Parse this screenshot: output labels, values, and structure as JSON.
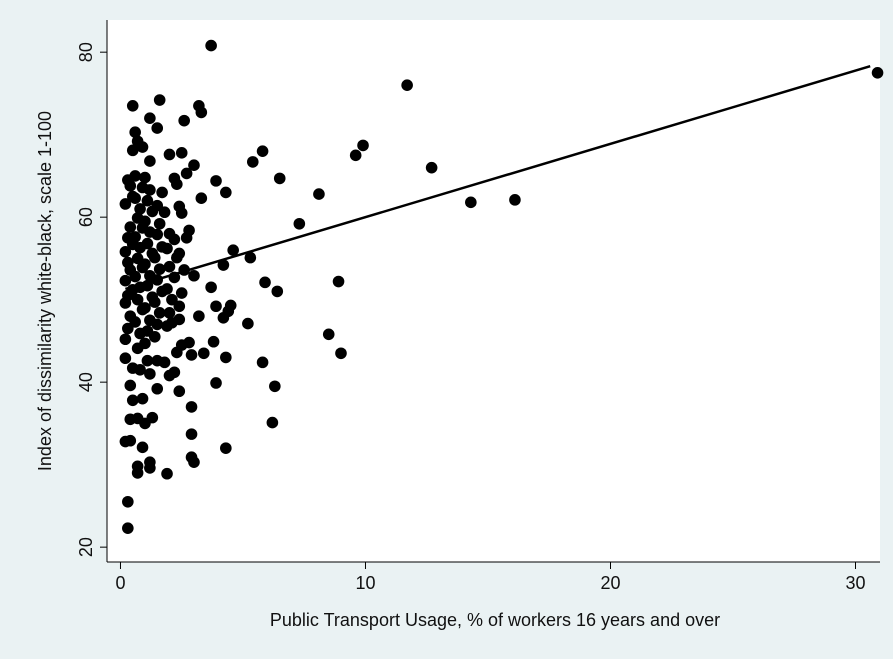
{
  "chart_data": {
    "type": "scatter",
    "xlabel": "Public Transport Usage, % of workers 16 years and over",
    "ylabel": "Index of dissimilarity white-black, scale 1-100",
    "color": "#000000",
    "x": [
      3.7,
      0.5,
      1.6,
      3.2,
      3.3,
      2.6,
      1.2,
      1.5,
      0.6,
      0.7,
      11.7,
      30.9,
      9.9,
      9.6,
      5.8,
      5.4,
      6.5,
      12.7,
      8.1,
      14.3,
      16.1,
      7.3,
      4.3,
      3.9,
      3.3,
      3.0,
      2.5,
      2.0,
      2.2,
      2.7,
      1.2,
      0.5,
      0.9,
      5.3,
      4.6,
      4.2,
      5.9,
      6.4,
      8.9,
      3.7,
      3.0,
      4.5,
      4.4,
      3.9,
      5.2,
      4.2,
      3.2,
      8.5,
      9.0,
      5.8,
      4.3,
      3.8,
      3.4,
      2.8,
      2.9,
      2.5,
      6.3,
      3.9,
      2.4,
      2.9,
      6.2,
      2.9,
      4.3,
      2.9,
      3.0,
      1.9,
      0.7,
      1.2,
      0.7,
      1.2,
      0.3,
      0.3,
      0.4,
      0.9,
      0.2,
      1.0,
      1.3,
      0.4,
      0.7,
      0.5,
      0.9,
      2.0,
      2.2,
      1.5,
      1.8,
      1.5,
      1.1,
      0.4,
      0.2,
      0.8,
      0.2,
      0.3,
      0.4,
      0.2,
      0.3,
      0.5,
      0.2,
      0.4,
      0.3,
      0.2,
      0.5,
      0.3,
      0.4,
      0.2,
      0.5,
      0.4,
      0.3,
      0.6,
      0.7,
      0.8,
      0.6,
      0.9,
      0.7,
      0.8,
      0.6,
      0.9,
      0.7,
      0.8,
      0.6,
      0.9,
      0.7,
      0.8,
      0.6,
      0.9,
      1.0,
      1.1,
      1.2,
      1.0,
      1.3,
      1.1,
      1.2,
      1.0,
      1.3,
      1.1,
      1.2,
      1.0,
      1.3,
      1.1,
      1.2,
      1.0,
      1.4,
      1.5,
      1.6,
      1.4,
      1.7,
      1.5,
      1.6,
      1.4,
      1.7,
      1.5,
      1.6,
      1.8,
      1.5,
      1.7,
      1.9,
      2.0,
      2.1,
      1.9,
      2.2,
      2.0,
      2.3,
      1.9,
      2.2,
      2.0,
      2.4,
      2.5,
      2.6,
      2.4,
      2.7,
      2.8,
      2.5,
      2.4,
      2.3,
      2.1,
      2.4,
      2.3,
      1.2,
      0.5
    ],
    "values": [
      80.8,
      73.5,
      74.2,
      73.5,
      72.7,
      71.7,
      72.0,
      70.8,
      70.3,
      69.2,
      76.0,
      77.5,
      68.7,
      67.5,
      68.0,
      66.7,
      64.7,
      66.0,
      62.8,
      61.8,
      62.1,
      59.2,
      63.0,
      64.4,
      62.3,
      66.3,
      67.8,
      67.6,
      64.7,
      65.3,
      66.8,
      68.1,
      68.5,
      55.1,
      56.0,
      54.2,
      52.1,
      51.0,
      52.2,
      51.5,
      52.9,
      49.3,
      48.6,
      49.2,
      47.1,
      47.8,
      48.0,
      45.8,
      43.5,
      42.4,
      43.0,
      44.9,
      43.5,
      44.8,
      43.3,
      44.5,
      39.5,
      39.9,
      38.9,
      37.0,
      35.1,
      33.7,
      32.0,
      30.9,
      30.3,
      28.9,
      29.0,
      29.6,
      29.8,
      30.3,
      25.5,
      22.3,
      32.9,
      32.1,
      32.8,
      35.0,
      35.7,
      35.5,
      35.6,
      37.8,
      38.0,
      40.8,
      41.2,
      39.2,
      42.4,
      42.6,
      42.6,
      39.6,
      42.9,
      41.5,
      45.2,
      46.5,
      48.0,
      49.6,
      50.5,
      51.2,
      52.3,
      53.6,
      54.5,
      55.8,
      56.7,
      57.5,
      58.8,
      61.6,
      62.5,
      63.8,
      64.5,
      65.0,
      44.1,
      45.9,
      47.3,
      48.8,
      50.0,
      51.5,
      52.8,
      53.9,
      55.0,
      56.3,
      57.6,
      58.7,
      59.9,
      61.0,
      62.3,
      63.6,
      44.7,
      46.2,
      47.5,
      49.0,
      50.3,
      51.7,
      52.9,
      54.3,
      55.6,
      56.8,
      58.2,
      59.5,
      60.7,
      62.0,
      63.3,
      64.8,
      45.5,
      47.0,
      48.4,
      49.7,
      51.0,
      52.4,
      53.7,
      55.1,
      56.4,
      57.9,
      59.2,
      60.6,
      61.4,
      63.0,
      46.8,
      48.4,
      50.0,
      51.3,
      52.7,
      54.0,
      55.1,
      56.2,
      57.3,
      58.0,
      49.2,
      50.8,
      53.6,
      55.6,
      57.5,
      58.4,
      60.5,
      61.3,
      64.0,
      47.2,
      47.6,
      43.6,
      41.0,
      41.7
    ],
    "fit": {
      "x": [
        0.2,
        30.6
      ],
      "values": [
        51.3,
        78.3
      ],
      "color": "#000000"
    },
    "xlim": [
      -0.55,
      31.0
    ],
    "ylim": [
      18.2,
      83.9
    ],
    "xticks": [
      0,
      10,
      20,
      30
    ],
    "yticks": [
      20,
      40,
      60,
      80
    ]
  }
}
